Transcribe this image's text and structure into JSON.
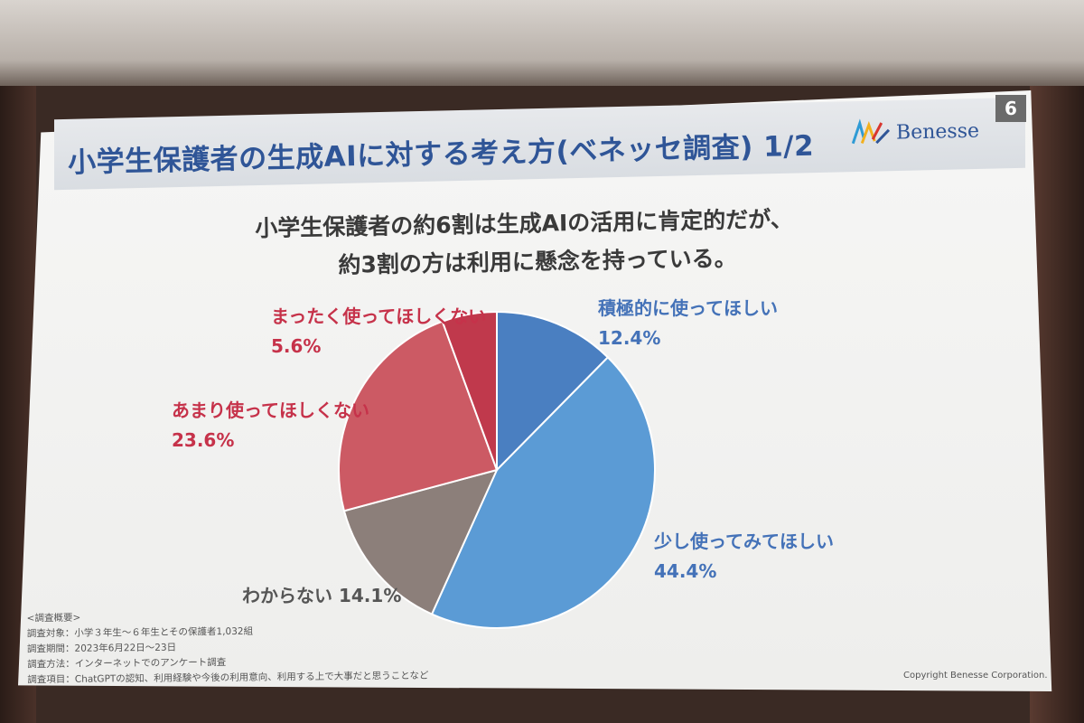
{
  "slide": {
    "title": "小学生保護者の生成AIに対する考え方(ベネッセ調査) 1/2",
    "page_number": "6",
    "logo_text": "Benesse",
    "headline_line1": "小学生保護者の約6割は生成AIの活用に肯定的だが、",
    "headline_line2": "約3割の方は利用に懸念を持っている。",
    "survey_header": "<調査概要>",
    "survey_target": "調査対象：小学３年生～６年生とその保護者1,032組",
    "survey_period": "調査期間：2023年6月22日～23日",
    "survey_method": "調査方法：インターネットでのアンケート調査",
    "survey_items": "調査項目：ChatGPTの認知、利用経験や今後の利用意向、利用する上で大事だと思うことなど",
    "copyright": "Copyright  Benesse Corporation."
  },
  "chart_data": {
    "type": "pie",
    "start_angle_deg": 0,
    "direction": "clockwise",
    "slices": [
      {
        "label": "積極的に使ってほしい",
        "value": 12.4,
        "value_text": "12.4%",
        "color": "#4a7fc1"
      },
      {
        "label": "少し使ってみてほしい",
        "value": 44.4,
        "value_text": "44.4%",
        "color": "#5b9bd5"
      },
      {
        "label": "わからない",
        "value": 14.1,
        "value_text": "14.1%",
        "color": "#8c7f7a"
      },
      {
        "label": "あまり使ってほしくない",
        "value": 23.6,
        "value_text": "23.6%",
        "color": "#cc5a64"
      },
      {
        "label": "まったく使ってほしくない",
        "value": 5.6,
        "value_text": "5.6%",
        "color": "#c0394c"
      }
    ]
  }
}
